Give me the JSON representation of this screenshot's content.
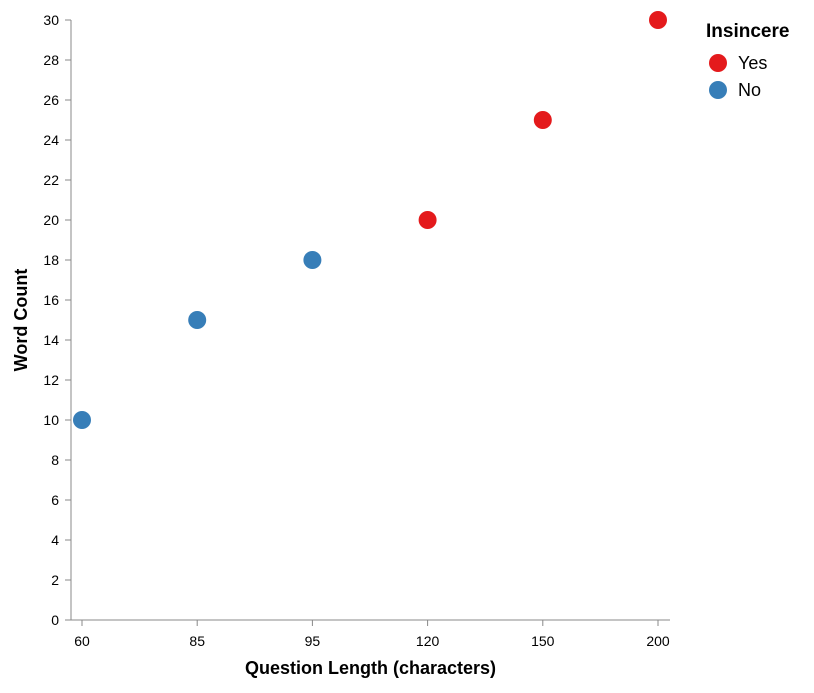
{
  "chart_data": {
    "type": "scatter",
    "xlabel": "Question Length (characters)",
    "ylabel": "Word Count",
    "x_scale": "band",
    "x_categories": [
      "60",
      "85",
      "95",
      "120",
      "150",
      "200"
    ],
    "ylim": [
      0,
      30
    ],
    "y_ticks": [
      0,
      2,
      4,
      6,
      8,
      10,
      12,
      14,
      16,
      18,
      20,
      22,
      24,
      26,
      28,
      30
    ],
    "grid": false,
    "legend": {
      "title": "Insincere",
      "position": "top-right",
      "entries": [
        {
          "label": "Yes",
          "color": "#e41a1c"
        },
        {
          "label": "No",
          "color": "#377eb8"
        }
      ]
    },
    "points": [
      {
        "x": "60",
        "y": 10,
        "insincere": "No"
      },
      {
        "x": "85",
        "y": 15,
        "insincere": "No"
      },
      {
        "x": "95",
        "y": 18,
        "insincere": "No"
      },
      {
        "x": "120",
        "y": 20,
        "insincere": "Yes"
      },
      {
        "x": "150",
        "y": 25,
        "insincere": "Yes"
      },
      {
        "x": "200",
        "y": 30,
        "insincere": "Yes"
      }
    ]
  }
}
